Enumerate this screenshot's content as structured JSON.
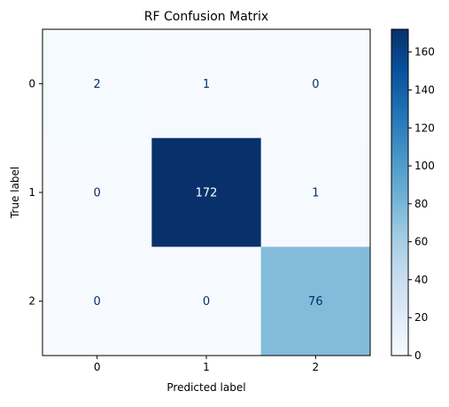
{
  "chart_data": {
    "type": "heatmap",
    "title": "RF Confusion Matrix",
    "xlabel": "Predicted label",
    "ylabel": "True label",
    "x_categories": [
      "0",
      "1",
      "2"
    ],
    "y_categories": [
      "0",
      "1",
      "2"
    ],
    "values": [
      [
        2,
        1,
        0
      ],
      [
        0,
        172,
        1
      ],
      [
        0,
        0,
        76
      ]
    ],
    "colormap": "Blues",
    "colorbar": {
      "min": 0,
      "max": 172,
      "ticks": [
        "0",
        "20",
        "40",
        "60",
        "80",
        "100",
        "120",
        "140",
        "160"
      ]
    },
    "grid": false
  }
}
